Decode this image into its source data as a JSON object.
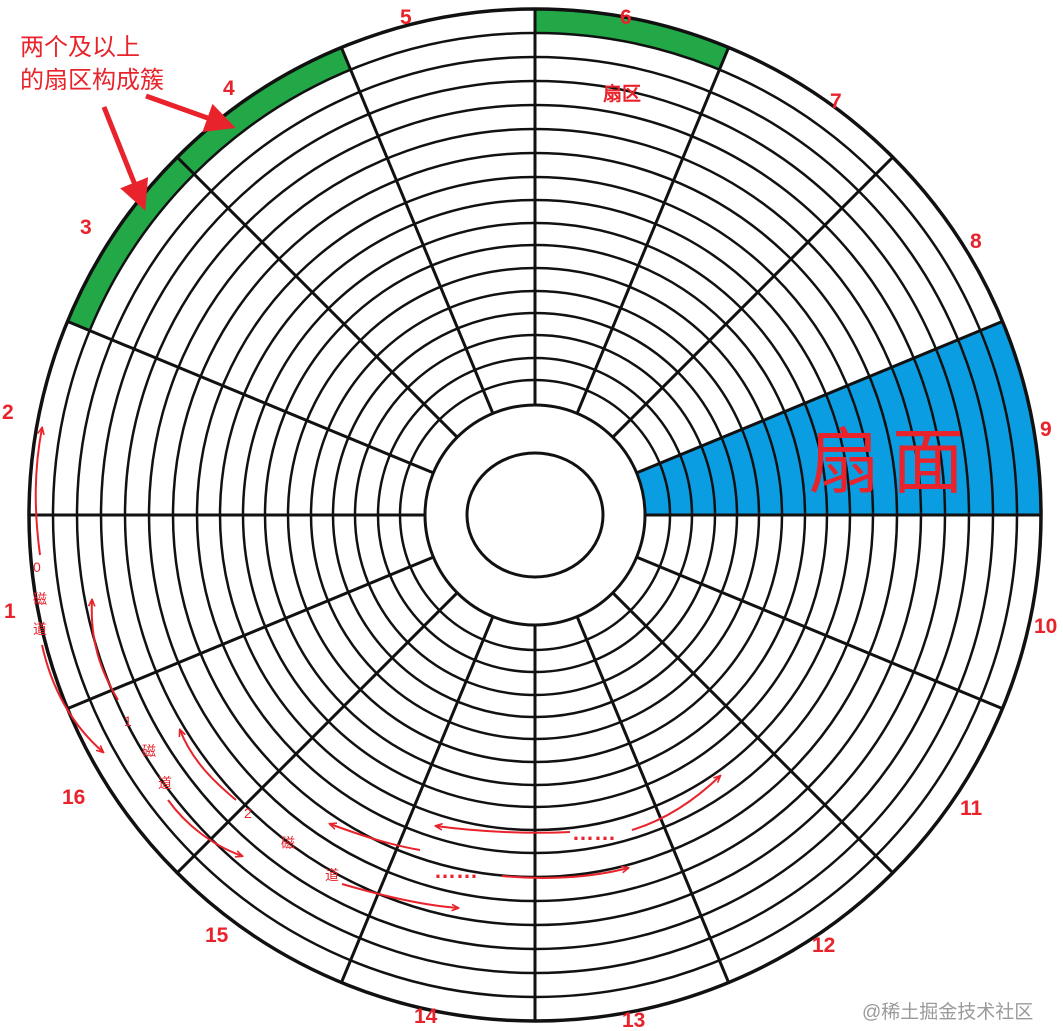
{
  "sector_numbers": [
    "1",
    "2",
    "3",
    "4",
    "5",
    "6",
    "7",
    "8",
    "9",
    "10",
    "11",
    "12",
    "13",
    "14",
    "15",
    "16"
  ],
  "annotations": {
    "cluster_line1": "两个及以上",
    "cluster_line2": "的扇区构成簇",
    "sector_label": "扇区",
    "fan_label": "扇面",
    "track0_num": "0",
    "track1_num": "1",
    "track2_num": "2",
    "track_char1": "磁",
    "track_char2": "道",
    "dots": "……"
  },
  "watermark": "@稀土掘金技术社区",
  "colors": {
    "red": "#e8232b",
    "green": "#22a847",
    "blue": "#0a9de2",
    "line": "#111111"
  }
}
